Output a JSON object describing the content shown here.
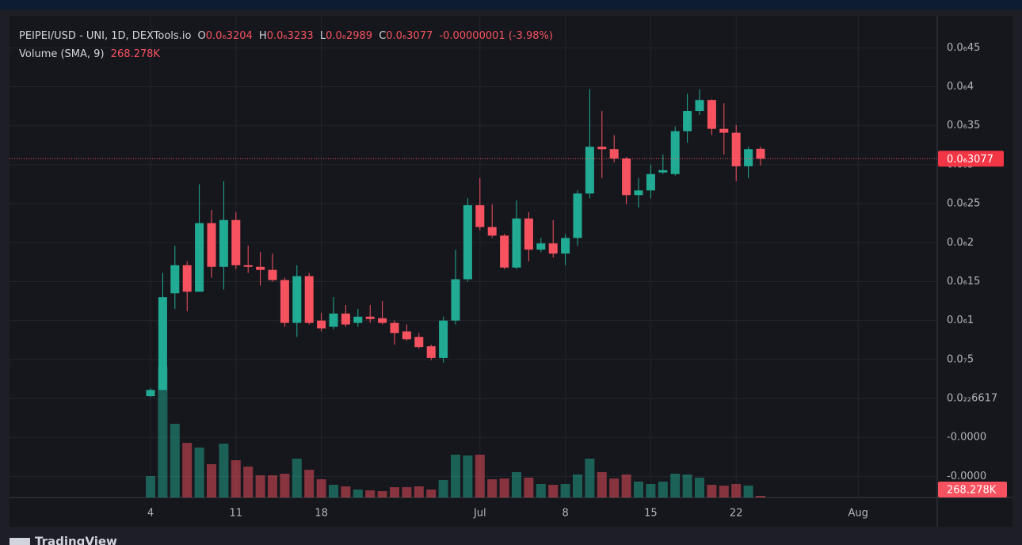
{
  "header": {
    "symbol": "PEIPEI/USD - UNI, 1D, DEXTools.io",
    "open_key": "O",
    "open": "0.0₆3204",
    "high_key": "H",
    "high": "0.0₆3233",
    "low_key": "L",
    "low": "0.0₆2989",
    "close_key": "C",
    "close": "0.0₆3077",
    "change": "-0.00000001 (-3.98%)",
    "volume_title": "Volume (SMA, 9)"
  },
  "footer": {
    "brand": "TradingView"
  },
  "chart_data": {
    "type": "candlestick",
    "up_color": "#22ab94",
    "down_color": "#f7525f",
    "grid": true,
    "x": [
      "06-04",
      "06-05",
      "06-06",
      "06-07",
      "06-08",
      "06-09",
      "06-10",
      "06-11",
      "06-12",
      "06-13",
      "06-14",
      "06-15",
      "06-16",
      "06-17",
      "06-18",
      "06-19",
      "06-20",
      "06-21",
      "06-22",
      "06-23",
      "06-24",
      "06-25",
      "06-26",
      "06-27",
      "06-28",
      "06-29",
      "06-30",
      "07-01",
      "07-02",
      "07-03",
      "07-04",
      "07-05",
      "07-06",
      "07-07",
      "07-08",
      "07-09",
      "07-10",
      "07-11",
      "07-12",
      "07-13",
      "07-14",
      "07-15",
      "07-16",
      "07-17",
      "07-18",
      "07-19",
      "07-20",
      "07-21",
      "07-22",
      "07-23",
      "07-24"
    ],
    "open": [
      3e-09,
      1.1e-08,
      1.35e-07,
      1.71e-07,
      1.37e-07,
      2.25e-07,
      1.69e-07,
      2.29e-07,
      1.71e-07,
      1.69e-07,
      1.65e-07,
      1.52e-07,
      9.7e-08,
      1.57e-07,
      1e-07,
      9.2e-08,
      1.09e-07,
      9.7e-08,
      1.05e-07,
      1.03e-07,
      9.7e-08,
      8.6e-08,
      7.9e-08,
      6.7e-08,
      5.2e-08,
      1e-07,
      1.53e-07,
      2.48e-07,
      2.2e-07,
      2.09e-07,
      1.68e-07,
      2.31e-07,
      1.91e-07,
      1.99e-07,
      1.86e-07,
      2.06e-07,
      2.63e-07,
      3.23e-07,
      3.2e-07,
      3.08e-07,
      2.61e-07,
      2.67e-07,
      2.9e-07,
      2.88e-07,
      3.43e-07,
      3.69e-07,
      3.83e-07,
      3.46e-07,
      3.41e-07,
      2.98e-07,
      3.204e-07
    ],
    "high": [
      1.3e-08,
      1.61e-07,
      1.96e-07,
      1.76e-07,
      2.75e-07,
      2.42e-07,
      2.79e-07,
      2.39e-07,
      1.96e-07,
      1.88e-07,
      1.86e-07,
      1.55e-07,
      1.71e-07,
      1.61e-07,
      1.1e-07,
      1.3e-07,
      1.2e-07,
      1.15e-07,
      1.2e-07,
      1.25e-07,
      1e-07,
      9.5e-08,
      8.4e-08,
      6.9e-08,
      1.05e-07,
      1.91e-07,
      2.57e-07,
      2.83e-07,
      2.49e-07,
      2.11e-07,
      2.54e-07,
      2.39e-07,
      2.06e-07,
      2.29e-07,
      2.11e-07,
      2.67e-07,
      3.97e-07,
      3.69e-07,
      3.38e-07,
      3.1e-07,
      2.83e-07,
      3e-07,
      3.13e-07,
      3.49e-07,
      3.91e-07,
      3.97e-07,
      3.84e-07,
      3.79e-07,
      3.51e-07,
      3.23e-07,
      3.233e-07
    ],
    "low": [
      2e-09,
      1.1e-08,
      1.15e-07,
      1.12e-07,
      1.37e-07,
      1.55e-07,
      1.4e-07,
      1.66e-07,
      1.61e-07,
      1.45e-07,
      1.5e-07,
      9.2e-08,
      7.9e-08,
      9.5e-08,
      8.6e-08,
      8.9e-08,
      9.2e-08,
      9.2e-08,
      9.7e-08,
      9.5e-08,
      6.9e-08,
      7.4e-08,
      6.4e-08,
      4.9e-08,
      4.6e-08,
      9.5e-08,
      1.5e-07,
      2.16e-07,
      2.06e-07,
      1.66e-07,
      1.66e-07,
      1.76e-07,
      1.88e-07,
      1.81e-07,
      1.71e-07,
      1.96e-07,
      2.57e-07,
      2.83e-07,
      3.03e-07,
      2.49e-07,
      2.45e-07,
      2.57e-07,
      2.88e-07,
      2.86e-07,
      3.28e-07,
      3.64e-07,
      3.38e-07,
      3.13e-07,
      2.79e-07,
      2.83e-07,
      2.989e-07
    ],
    "close": [
      1.1e-08,
      1.3e-07,
      1.71e-07,
      1.37e-07,
      2.25e-07,
      1.69e-07,
      2.29e-07,
      1.71e-07,
      1.69e-07,
      1.65e-07,
      1.52e-07,
      9.7e-08,
      1.57e-07,
      9.7e-08,
      9e-08,
      1.09e-07,
      9.5e-08,
      1.05e-07,
      1.02e-07,
      9.7e-08,
      8.4e-08,
      7.6e-08,
      6.6e-08,
      5.2e-08,
      1e-07,
      1.53e-07,
      2.48e-07,
      2.2e-07,
      2.09e-07,
      1.68e-07,
      2.31e-07,
      1.91e-07,
      1.99e-07,
      1.86e-07,
      2.06e-07,
      2.63e-07,
      3.23e-07,
      3.2e-07,
      3.08e-07,
      2.61e-07,
      2.67e-07,
      2.88e-07,
      2.93e-07,
      3.43e-07,
      3.69e-07,
      3.83e-07,
      3.46e-07,
      3.41e-07,
      2.98e-07,
      3.2e-07,
      3.077e-07
    ],
    "volume": [
      378000,
      2310000,
      1302000,
      966000,
      882000,
      588000,
      952000,
      658000,
      546000,
      392000,
      392000,
      420000,
      686000,
      490000,
      322000,
      224000,
      196000,
      140000,
      126000,
      112000,
      182000,
      182000,
      196000,
      140000,
      308000,
      756000,
      742000,
      756000,
      322000,
      336000,
      448000,
      350000,
      238000,
      224000,
      238000,
      406000,
      686000,
      448000,
      336000,
      406000,
      280000,
      238000,
      280000,
      420000,
      406000,
      350000,
      224000,
      210000,
      238000,
      210000,
      28000
    ],
    "volume_sma": {
      "value": 268278,
      "label": "268.278K"
    },
    "price_line": {
      "value": 3.077e-07,
      "label": "0.0₆3077"
    },
    "ylim": [
      -1.27e-07,
      4.91e-07
    ],
    "yticks": [
      {
        "value": 4.5e-07,
        "label": "0.0₆45"
      },
      {
        "value": 4e-07,
        "label": "0.0₆4"
      },
      {
        "value": 3.5e-07,
        "label": "0.0₆35"
      },
      {
        "value": 3e-07,
        "label": "0.0₆3"
      },
      {
        "value": 2.5e-07,
        "label": "0.0₆25"
      },
      {
        "value": 2e-07,
        "label": "0.0₆2"
      },
      {
        "value": 1.5e-07,
        "label": "0.0₆15"
      },
      {
        "value": 1e-07,
        "label": "0.0₆1"
      },
      {
        "value": 5e-08,
        "label": "0.0₇5"
      },
      {
        "value": 6.617e-23,
        "label": "0.0₂₂6617"
      },
      {
        "value": -5e-08,
        "label": "-0.0000"
      },
      {
        "value": -1e-07,
        "label": "-0.0000"
      }
    ],
    "xticks": [
      {
        "value": "06-04",
        "label": "4"
      },
      {
        "value": "06-11",
        "label": "11"
      },
      {
        "value": "06-18",
        "label": "18"
      },
      {
        "value": "07-01",
        "label": "Jul"
      },
      {
        "value": "07-08",
        "label": "8"
      },
      {
        "value": "07-15",
        "label": "15"
      },
      {
        "value": "07-22",
        "label": "22"
      },
      {
        "value": "08-01",
        "label": "Aug"
      }
    ]
  }
}
